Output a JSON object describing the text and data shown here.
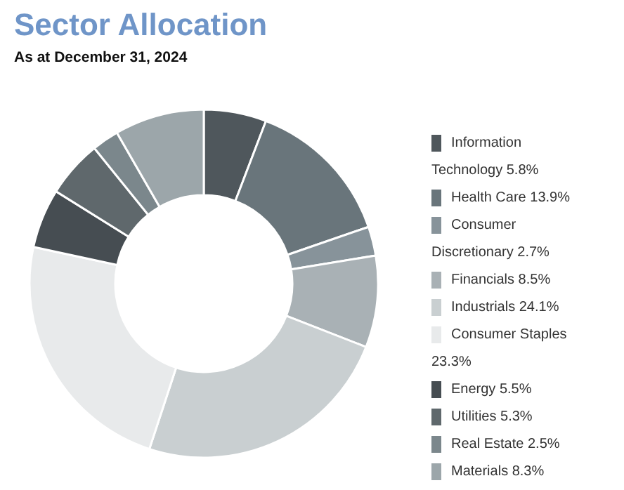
{
  "chart_data": {
    "type": "donut",
    "title": "Sector Allocation",
    "subtitle": "As at December 31, 2024",
    "categories": [
      "Information Technology",
      "Health Care",
      "Consumer Discretionary",
      "Financials",
      "Industrials",
      "Consumer Staples",
      "Energy",
      "Utilities",
      "Real Estate",
      "Materials"
    ],
    "values": [
      5.8,
      13.9,
      2.7,
      8.5,
      24.1,
      23.3,
      5.5,
      5.3,
      2.5,
      8.3
    ],
    "value_labels": [
      "5.8%",
      "13.9%",
      "2.7%",
      "8.5%",
      "24.1%",
      "23.3%",
      "5.5%",
      "5.3%",
      "2.5%",
      "8.3%"
    ],
    "colors": [
      "#4f575c",
      "#69757b",
      "#87939a",
      "#a9b1b5",
      "#c9cfd1",
      "#e8eaeb",
      "#464d52",
      "#5f686c",
      "#7b878c",
      "#9ca6aa"
    ],
    "legend": "right"
  }
}
